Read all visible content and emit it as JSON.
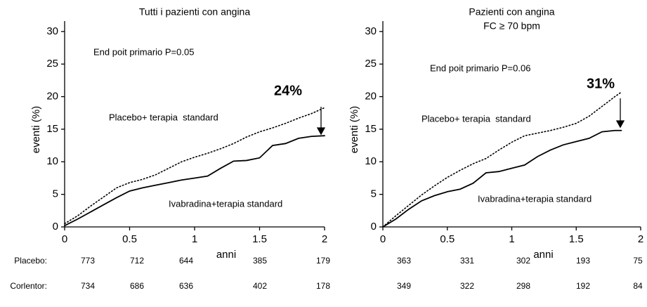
{
  "chart_data": [
    {
      "type": "line",
      "title": "Tutti i pazienti con angina",
      "xlabel": "anni",
      "ylabel": "eventi (%)",
      "x": [
        0,
        0.1,
        0.2,
        0.3,
        0.4,
        0.5,
        0.6,
        0.7,
        0.8,
        0.9,
        1.0,
        1.1,
        1.2,
        1.3,
        1.4,
        1.5,
        1.6,
        1.7,
        1.8,
        1.9,
        2.0
      ],
      "series": [
        {
          "name": "Placebo+ terapia  standard",
          "color": "#000000",
          "style": "dotted",
          "values": [
            0.5,
            1.7,
            3.2,
            4.6,
            6.0,
            6.8,
            7.3,
            8.0,
            9.0,
            10.0,
            10.7,
            11.3,
            12.0,
            12.8,
            13.8,
            14.6,
            15.2,
            15.9,
            16.7,
            17.4,
            18.3
          ]
        },
        {
          "name": "Ivabradina+terapia standard",
          "color": "#000000",
          "style": "solid",
          "values": [
            0.2,
            1.2,
            2.3,
            3.4,
            4.5,
            5.5,
            6.0,
            6.4,
            6.8,
            7.2,
            7.5,
            7.8,
            9.0,
            10.1,
            10.2,
            10.6,
            12.5,
            12.8,
            13.6,
            13.9,
            14.0
          ]
        }
      ],
      "annotations": [
        "End poit primario P=0.05",
        "24%"
      ],
      "xlim": [
        0,
        2
      ],
      "xticks": [
        0,
        0.5,
        1,
        1.5,
        2
      ],
      "ylim": [
        0,
        31.6
      ],
      "yticks": [
        0,
        5,
        10,
        15,
        20,
        25,
        30
      ],
      "at_risk": [
        {
          "label": "Placebo:",
          "values": [
            "773",
            "712",
            "644",
            "385",
            "179"
          ]
        },
        {
          "label": "Corlentor:",
          "values": [
            "734",
            "686",
            "636",
            "402",
            "178"
          ]
        }
      ]
    },
    {
      "type": "line",
      "title": "Pazienti con angina",
      "subtitle": "FC ≥ 70 bpm",
      "xlabel": "anni",
      "ylabel": "eventi (%)",
      "x": [
        0,
        0.1,
        0.2,
        0.3,
        0.4,
        0.5,
        0.6,
        0.7,
        0.8,
        0.9,
        1.0,
        1.1,
        1.2,
        1.3,
        1.4,
        1.5,
        1.6,
        1.7,
        1.8,
        1.85
      ],
      "series": [
        {
          "name": "Placebo+ terapia  standard",
          "color": "#000000",
          "style": "dotted",
          "values": [
            0,
            1.7,
            3.3,
            4.9,
            6.3,
            7.6,
            8.7,
            9.7,
            10.5,
            11.8,
            13.0,
            14.0,
            14.4,
            14.8,
            15.3,
            15.9,
            17.0,
            18.5,
            20.0,
            20.7
          ]
        },
        {
          "name": "Ivabradina+terapia standard",
          "color": "#000000",
          "style": "solid",
          "values": [
            0,
            1.2,
            2.7,
            4.0,
            4.8,
            5.4,
            5.8,
            6.7,
            8.3,
            8.5,
            9.0,
            9.5,
            10.8,
            11.8,
            12.6,
            13.1,
            13.6,
            14.6,
            14.8,
            14.8
          ]
        }
      ],
      "annotations": [
        "End poit primario P=0.06",
        "31%"
      ],
      "xlim": [
        0,
        2
      ],
      "xticks": [
        0,
        0.5,
        1,
        1.5,
        2
      ],
      "ylim": [
        0,
        31.6
      ],
      "yticks": [
        0,
        5,
        10,
        15,
        20,
        25,
        30
      ],
      "at_risk": [
        {
          "values": [
            "363",
            "331",
            "302",
            "193",
            "75"
          ]
        },
        {
          "values": [
            "349",
            "322",
            "298",
            "192",
            "84"
          ]
        }
      ]
    }
  ]
}
